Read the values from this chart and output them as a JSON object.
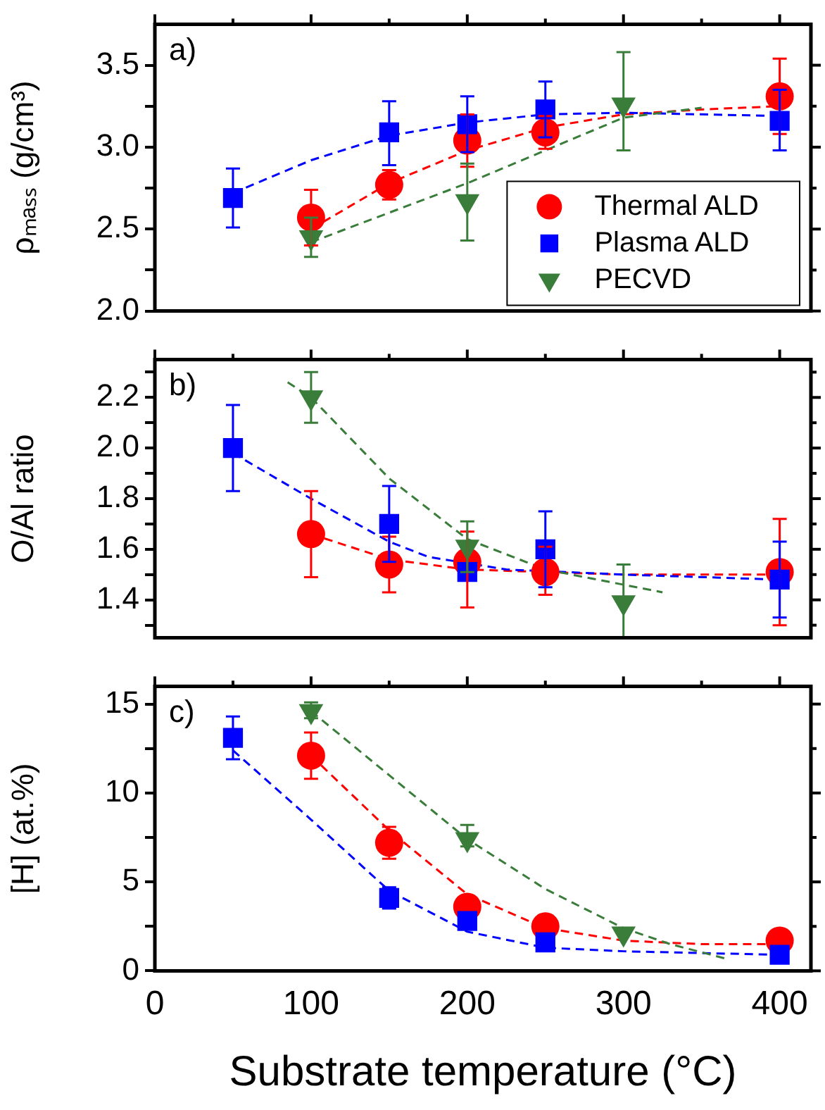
{
  "chart_data": [
    {
      "type": "scatter",
      "ylabel": "ρₘₐₛₛ (g/cm³)",
      "annotations": [
        "a)"
      ],
      "xlim": [
        0,
        420
      ],
      "xticks": [
        0,
        {
          "value": 50,
          "label": null
        },
        100,
        {
          "value": 150,
          "label": null
        },
        200,
        {
          "value": 250,
          "label": null
        },
        300,
        {
          "value": 350,
          "label": null
        },
        400
      ],
      "ylim": [
        2.0,
        3.75
      ],
      "yticks": [
        {
          "value": 2,
          "label": "2.0"
        },
        {
          "value": 2.25,
          "label": null
        },
        {
          "value": 2.5,
          "label": "2.5"
        },
        {
          "value": 2.75,
          "label": null
        },
        {
          "value": 3,
          "label": "3.0"
        },
        {
          "value": 3.25,
          "label": null
        },
        {
          "value": 3.5,
          "label": "3.5"
        }
      ],
      "tick_labels": "y",
      "legend": "bottom right",
      "series": [
        {
          "type": "line",
          "color": "#ff0000",
          "line_style": "dashed",
          "marker": "none",
          "x": [
            100,
            150,
            200,
            250,
            300,
            350,
            400
          ],
          "values": [
            2.5,
            2.78,
            2.98,
            3.12,
            3.2,
            3.23,
            3.25
          ]
        },
        {
          "type": "line",
          "color": "#0000ff",
          "line_style": "dashed",
          "marker": "none",
          "x": [
            50,
            100,
            150,
            200,
            250,
            300,
            400
          ],
          "values": [
            2.72,
            2.92,
            3.07,
            3.15,
            3.2,
            3.21,
            3.19
          ]
        },
        {
          "type": "line",
          "color": "#3a7d3a",
          "line_style": "dashed",
          "marker": "none",
          "x": [
            100,
            150,
            200,
            250,
            300,
            350
          ],
          "values": [
            2.42,
            2.6,
            2.78,
            2.98,
            3.18,
            3.24
          ]
        },
        {
          "name": "Thermal ALD",
          "color": "#ff0000",
          "marker": "circle",
          "x": [
            100,
            150,
            200,
            250,
            400
          ],
          "values": [
            2.57,
            2.77,
            3.04,
            3.09,
            3.31
          ],
          "errors": [
            [
              2.4,
              2.74
            ],
            [
              2.68,
              2.86
            ],
            [
              2.88,
              3.2
            ],
            [
              2.99,
              3.19
            ],
            [
              3.08,
              3.54
            ]
          ]
        },
        {
          "name": "Plasma ALD",
          "color": "#0000ff",
          "marker": "square",
          "x": [
            50,
            150,
            200,
            250,
            400
          ],
          "values": [
            2.69,
            3.09,
            3.14,
            3.23,
            3.16
          ],
          "errors": [
            [
              2.51,
              2.87
            ],
            [
              2.89,
              3.28
            ],
            [
              2.97,
              3.31
            ],
            [
              3.06,
              3.4
            ],
            [
              2.98,
              3.35
            ]
          ]
        },
        {
          "name": "PECVD",
          "color": "#3a7d3a",
          "marker": "triangle",
          "x": [
            100,
            200,
            300
          ],
          "values": [
            2.45,
            2.67,
            3.26
          ],
          "errors": [
            [
              2.33,
              2.57
            ],
            [
              2.43,
              2.9
            ],
            [
              2.98,
              3.58
            ]
          ]
        }
      ]
    },
    {
      "type": "scatter",
      "ylabel": "O/Al ratio",
      "annotations": [
        "b)"
      ],
      "xlim": [
        0,
        420
      ],
      "xticks": [
        0,
        {
          "value": 50,
          "label": null
        },
        100,
        {
          "value": 150,
          "label": null
        },
        200,
        {
          "value": 250,
          "label": null
        },
        300,
        {
          "value": 350,
          "label": null
        },
        400
      ],
      "ylim": [
        1.25,
        2.35
      ],
      "yticks": [
        {
          "value": 1.3,
          "label": null
        },
        1.4,
        {
          "value": 1.5,
          "label": null
        },
        1.6,
        {
          "value": 1.7,
          "label": null
        },
        1.8,
        {
          "value": 1.9,
          "label": null
        },
        {
          "value": 2,
          "label": "2.0"
        },
        {
          "value": 2.1,
          "label": null
        },
        2.2,
        {
          "value": 2.3,
          "label": null
        }
      ],
      "tick_labels": "y",
      "series": [
        {
          "type": "line",
          "color": "#ff0000",
          "line_style": "dashed",
          "marker": "none",
          "x": [
            100,
            150,
            200,
            250,
            300,
            400
          ],
          "values": [
            1.66,
            1.56,
            1.52,
            1.51,
            1.5,
            1.5
          ]
        },
        {
          "type": "line",
          "color": "#0000ff",
          "line_style": "dashed",
          "marker": "none",
          "x": [
            50,
            100,
            150,
            175,
            225,
            300,
            400
          ],
          "values": [
            1.98,
            1.8,
            1.63,
            1.57,
            1.52,
            1.5,
            1.48
          ]
        },
        {
          "type": "line",
          "color": "#3a7d3a",
          "line_style": "dashed",
          "marker": "none",
          "x": [
            85,
            100,
            150,
            200,
            250,
            300,
            325
          ],
          "values": [
            2.26,
            2.2,
            1.88,
            1.64,
            1.52,
            1.46,
            1.43
          ]
        },
        {
          "color": "#ff0000",
          "marker": "circle",
          "x": [
            100,
            150,
            200,
            250,
            400
          ],
          "values": [
            1.66,
            1.54,
            1.55,
            1.51,
            1.51
          ],
          "errors": [
            [
              1.49,
              1.83
            ],
            [
              1.43,
              1.65
            ],
            [
              1.37,
              1.67
            ],
            [
              1.42,
              1.61
            ],
            [
              1.3,
              1.72
            ]
          ]
        },
        {
          "color": "#0000ff",
          "marker": "square",
          "x": [
            50,
            150,
            200,
            250,
            400
          ],
          "values": [
            2.0,
            1.7,
            1.51,
            1.6,
            1.48
          ],
          "errors": [
            [
              1.83,
              2.17
            ],
            [
              1.55,
              1.85
            ],
            null,
            [
              1.45,
              1.75
            ],
            [
              1.33,
              1.63
            ]
          ]
        },
        {
          "color": "#3a7d3a",
          "marker": "triangle",
          "x": [
            100,
            200,
            300
          ],
          "values": [
            2.2,
            1.61,
            1.39
          ],
          "errors": [
            [
              2.1,
              2.3
            ],
            [
              1.51,
              1.71
            ],
            [
              1.25,
              1.54
            ]
          ]
        }
      ]
    },
    {
      "type": "scatter",
      "xlabel": "Substrate temperature (°C)",
      "ylabel": "[H] (at.%)",
      "annotations": [
        "c)"
      ],
      "xlim": [
        0,
        420
      ],
      "xticks": [
        0,
        {
          "value": 50,
          "label": null
        },
        100,
        {
          "value": 150,
          "label": null
        },
        200,
        {
          "value": 250,
          "label": null
        },
        300,
        {
          "value": 350,
          "label": null
        },
        400
      ],
      "ylim": [
        0,
        16
      ],
      "yticks": [
        0,
        {
          "value": 2.5,
          "label": null
        },
        5,
        {
          "value": 7.5,
          "label": null
        },
        10,
        {
          "value": 12.5,
          "label": null
        },
        15
      ],
      "series": [
        {
          "type": "line",
          "color": "#ff0000",
          "line_style": "dashed",
          "marker": "none",
          "x": [
            100,
            150,
            200,
            250,
            300,
            350,
            400
          ],
          "values": [
            12.1,
            7.9,
            4.3,
            2.4,
            1.7,
            1.5,
            1.5
          ]
        },
        {
          "type": "line",
          "color": "#0000ff",
          "line_style": "dashed",
          "marker": "none",
          "x": [
            50,
            100,
            150,
            200,
            250,
            300,
            400
          ],
          "values": [
            12.4,
            8.5,
            4.5,
            2.2,
            1.3,
            1.1,
            0.9
          ]
        },
        {
          "type": "line",
          "color": "#3a7d3a",
          "line_style": "dashed",
          "marker": "none",
          "x": [
            100,
            150,
            200,
            250,
            300,
            330,
            365
          ],
          "values": [
            14.6,
            11.0,
            7.4,
            4.6,
            2.4,
            1.5,
            0.7
          ]
        },
        {
          "color": "#ff0000",
          "marker": "circle",
          "x": [
            100,
            150,
            200,
            250,
            400
          ],
          "values": [
            12.1,
            7.2,
            3.6,
            2.5,
            1.7
          ],
          "errors": [
            [
              10.8,
              13.4
            ],
            [
              6.3,
              8.1
            ],
            null,
            null,
            null
          ]
        },
        {
          "color": "#0000ff",
          "marker": "square",
          "x": [
            50,
            150,
            200,
            250,
            400
          ],
          "values": [
            13.1,
            4.1,
            2.8,
            1.6,
            0.9
          ],
          "errors": [
            [
              11.9,
              14.3
            ],
            [
              3.5,
              4.7
            ],
            null,
            null,
            null
          ]
        },
        {
          "color": "#3a7d3a",
          "marker": "triangle",
          "x": [
            100,
            200,
            300
          ],
          "values": [
            14.6,
            7.4,
            2.1
          ],
          "errors": [
            [
              14.2,
              15.1
            ],
            [
              7.0,
              8.2
            ],
            null
          ]
        }
      ]
    }
  ]
}
